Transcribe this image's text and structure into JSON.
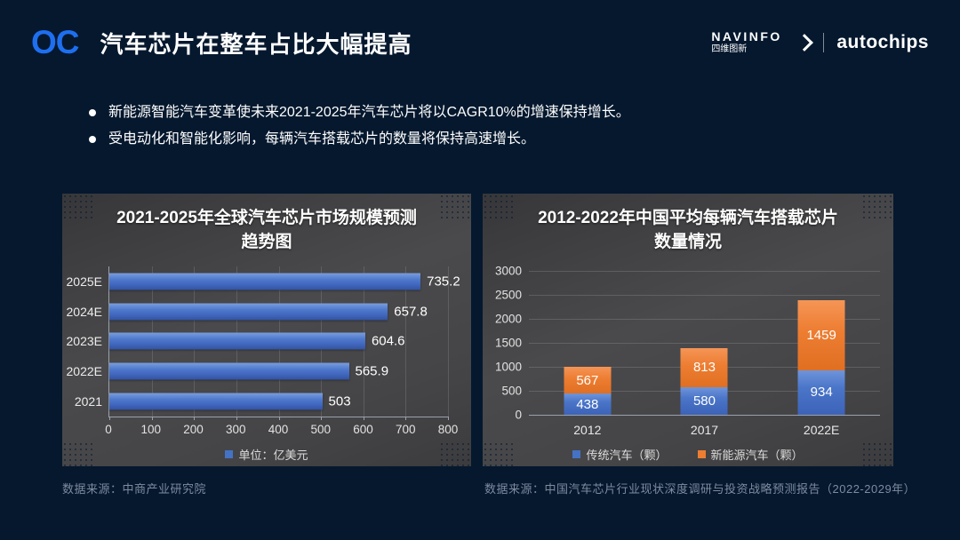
{
  "header": {
    "logo": "OC",
    "title": "汽车芯片在整车占比大幅提高",
    "brand": {
      "navinfo_en": "NAVINFO",
      "navinfo_cn": "四维图新",
      "autochips": "autochips"
    }
  },
  "bullets": [
    "新能源智能汽车变革使未来2021-2025年汽车芯片将以CAGR10%的增速保持增长。",
    "受电动化和智能化影响，每辆汽车搭载芯片的数量将保持高速增长。"
  ],
  "colors": {
    "background": "#05182e",
    "panel": "#454547",
    "accent_blue": "#1e6ff0",
    "bar_blue": "#4472c4",
    "bar_orange": "#ed7d31"
  },
  "chart_data": [
    {
      "type": "bar",
      "orientation": "horizontal",
      "title": "2021-2025年全球汽车芯片市场规模预测趋势图",
      "title_lines": [
        "2021-2025年全球汽车芯片市场规模预测",
        "趋势图"
      ],
      "categories": [
        "2025E",
        "2024E",
        "2023E",
        "2022E",
        "2021"
      ],
      "values": [
        735.2,
        657.8,
        604.6,
        565.9,
        503
      ],
      "value_labels": [
        "735.2",
        "657.8",
        "604.6",
        "565.9",
        "503"
      ],
      "xlim": [
        0,
        800
      ],
      "x_ticks": [
        0,
        100,
        200,
        300,
        400,
        500,
        600,
        700,
        800
      ],
      "grid": true,
      "legend": "单位：亿美元",
      "legend_position": "bottom",
      "bar_color": "#4472c4",
      "source": "数据来源：中商产业研究院"
    },
    {
      "type": "bar",
      "subtype": "stacked",
      "orientation": "vertical",
      "title": "2012-2022年中国平均每辆汽车搭载芯片数量情况",
      "title_lines": [
        "2012-2022年中国平均每辆汽车搭载芯片",
        "数量情况"
      ],
      "categories": [
        "2012",
        "2017",
        "2022E"
      ],
      "series": [
        {
          "name": "传统汽车（颗）",
          "color": "#4472c4",
          "values": [
            438,
            580,
            934
          ]
        },
        {
          "name": "新能源汽车（颗）",
          "color": "#ed7d31",
          "values": [
            567,
            813,
            1459
          ]
        }
      ],
      "ylim": [
        0,
        3000
      ],
      "y_ticks": [
        0,
        500,
        1000,
        1500,
        2000,
        2500,
        3000
      ],
      "grid": true,
      "legend_position": "bottom",
      "source": "数据来源：中国汽车芯片行业现状深度调研与投资战略预测报告（2022-2029年）"
    }
  ]
}
